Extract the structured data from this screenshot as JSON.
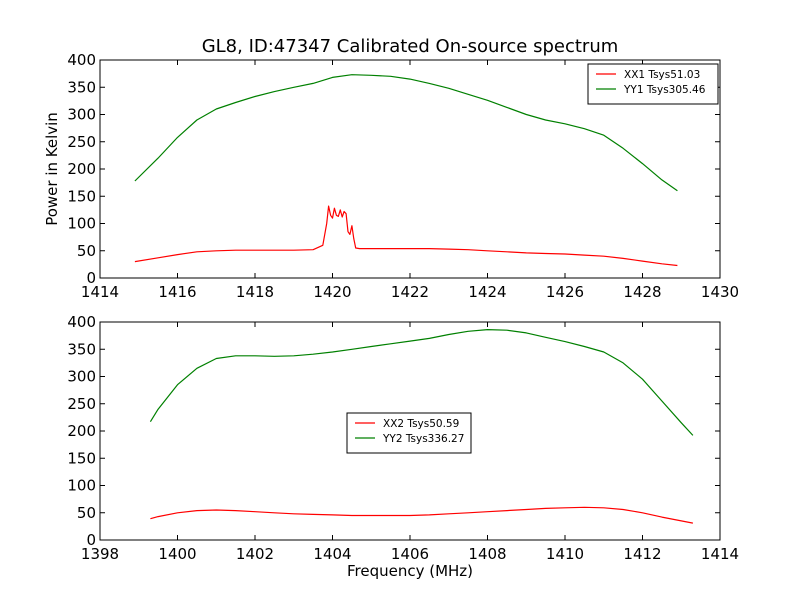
{
  "figure": {
    "title": "GL8, ID:47347 Calibrated On-source spectrum",
    "xlabel": "Frequency (MHz)",
    "ylabel": "Power in Kelvin"
  },
  "colors": {
    "xx": "#ff0000",
    "yy": "#008000"
  },
  "chart_data": [
    {
      "type": "line",
      "xlim": [
        1414,
        1430
      ],
      "ylim": [
        0,
        400
      ],
      "xticks": [
        1414,
        1416,
        1418,
        1420,
        1422,
        1424,
        1426,
        1428,
        1430
      ],
      "yticks": [
        0,
        50,
        100,
        150,
        200,
        250,
        300,
        350,
        400
      ],
      "legend_placement": "top-right",
      "grid": false,
      "series": [
        {
          "name": "XX1 Tsys51.03",
          "color": "#ff0000",
          "x": [
            1414.9,
            1415.5,
            1416.0,
            1416.5,
            1417.0,
            1417.5,
            1418.0,
            1418.5,
            1419.0,
            1419.5,
            1419.75,
            1419.85,
            1419.9,
            1419.95,
            1420.0,
            1420.05,
            1420.1,
            1420.15,
            1420.2,
            1420.25,
            1420.3,
            1420.35,
            1420.4,
            1420.45,
            1420.5,
            1420.55,
            1420.6,
            1420.7,
            1421.0,
            1421.5,
            1422.0,
            1422.5,
            1423.0,
            1423.5,
            1424.0,
            1424.5,
            1425.0,
            1425.5,
            1426.0,
            1426.5,
            1427.0,
            1427.5,
            1428.0,
            1428.5,
            1428.9
          ],
          "values": [
            30,
            37,
            43,
            48,
            50,
            51,
            51,
            51,
            51,
            52,
            60,
            100,
            132,
            115,
            110,
            128,
            115,
            113,
            125,
            112,
            122,
            118,
            85,
            80,
            96,
            72,
            55,
            54,
            54,
            54,
            54,
            54,
            53,
            52,
            50,
            48,
            46,
            45,
            44,
            42,
            40,
            36,
            31,
            26,
            23
          ]
        },
        {
          "name": "YY1 Tsys305.46",
          "color": "#008000",
          "x": [
            1414.9,
            1415.5,
            1416.0,
            1416.5,
            1417.0,
            1417.5,
            1418.0,
            1418.5,
            1419.0,
            1419.5,
            1420.0,
            1420.5,
            1421.0,
            1421.5,
            1422.0,
            1422.5,
            1423.0,
            1423.5,
            1424.0,
            1424.5,
            1425.0,
            1425.5,
            1426.0,
            1426.5,
            1427.0,
            1427.5,
            1428.0,
            1428.5,
            1428.9
          ],
          "values": [
            178,
            220,
            258,
            290,
            310,
            322,
            333,
            342,
            350,
            357,
            368,
            373,
            372,
            370,
            365,
            357,
            348,
            337,
            326,
            313,
            300,
            290,
            283,
            274,
            262,
            238,
            210,
            180,
            160
          ]
        }
      ]
    },
    {
      "type": "line",
      "xlim": [
        1398,
        1414
      ],
      "ylim": [
        0,
        400
      ],
      "xticks": [
        1398,
        1400,
        1402,
        1404,
        1406,
        1408,
        1410,
        1412,
        1414
      ],
      "yticks": [
        0,
        50,
        100,
        150,
        200,
        250,
        300,
        350,
        400
      ],
      "legend_placement": "center",
      "grid": false,
      "series": [
        {
          "name": "XX2 Tsys50.59",
          "color": "#ff0000",
          "x": [
            1399.3,
            1399.5,
            1400.0,
            1400.5,
            1401.0,
            1401.5,
            1402.0,
            1402.5,
            1403.0,
            1403.5,
            1404.0,
            1404.5,
            1405.0,
            1405.5,
            1406.0,
            1406.5,
            1407.0,
            1407.5,
            1408.0,
            1408.5,
            1409.0,
            1409.5,
            1410.0,
            1410.5,
            1411.0,
            1411.5,
            1412.0,
            1412.5,
            1413.0,
            1413.3
          ],
          "values": [
            39,
            43,
            50,
            54,
            55,
            54,
            52,
            50,
            48,
            47,
            46,
            45,
            45,
            45,
            45,
            46,
            48,
            50,
            52,
            54,
            56,
            58,
            59,
            60,
            59,
            56,
            50,
            42,
            35,
            31
          ]
        },
        {
          "name": "YY2 Tsys336.27",
          "color": "#008000",
          "x": [
            1399.3,
            1399.5,
            1400.0,
            1400.5,
            1401.0,
            1401.5,
            1402.0,
            1402.5,
            1403.0,
            1403.5,
            1404.0,
            1404.5,
            1405.0,
            1405.5,
            1406.0,
            1406.5,
            1407.0,
            1407.5,
            1408.0,
            1408.5,
            1409.0,
            1409.5,
            1410.0,
            1410.5,
            1411.0,
            1411.5,
            1412.0,
            1412.5,
            1413.0,
            1413.3
          ],
          "values": [
            217,
            240,
            285,
            315,
            333,
            338,
            338,
            337,
            338,
            341,
            345,
            350,
            355,
            360,
            365,
            370,
            377,
            383,
            386,
            385,
            380,
            372,
            364,
            355,
            345,
            325,
            295,
            255,
            215,
            192
          ]
        }
      ]
    }
  ]
}
